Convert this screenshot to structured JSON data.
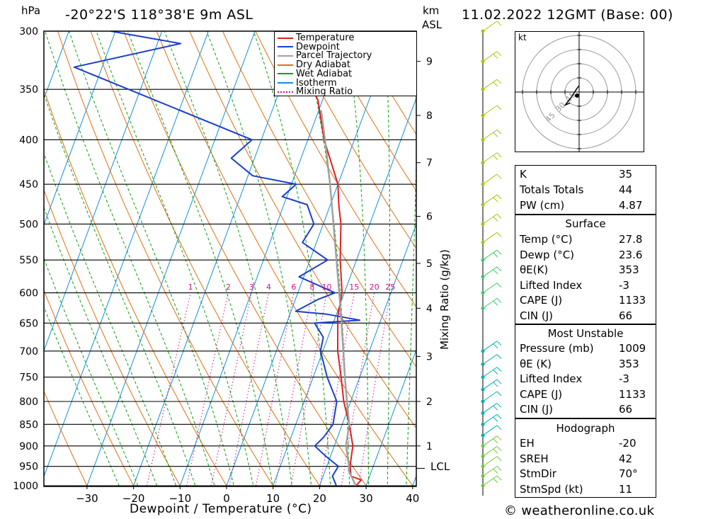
{
  "header": {
    "units_left": "hPa",
    "location": "-20°22'S  118°38'E  9m  ASL",
    "units_km": "km",
    "units_asl": "ASL",
    "datetime": "11.02.2022  12GMT  (Base: 00)"
  },
  "legend": {
    "items": [
      {
        "label": "Temperature",
        "color": "#e02020"
      },
      {
        "label": "Dewpoint",
        "color": "#1a3fd0"
      },
      {
        "label": "Parcel Trajectory",
        "color": "#a0a0a0"
      },
      {
        "label": "Dry Adiabat",
        "color": "#e07010"
      },
      {
        "label": "Wet Adiabat",
        "color": "#10a010"
      },
      {
        "label": "Isotherm",
        "color": "#1090e0"
      },
      {
        "label": "Mixing Ratio",
        "color": "#d0108a"
      }
    ]
  },
  "axes": {
    "pressure_ticks": [
      "300",
      "350",
      "400",
      "450",
      "500",
      "550",
      "600",
      "650",
      "700",
      "750",
      "800",
      "850",
      "900",
      "950",
      "1000"
    ],
    "temp_ticks": [
      "-30",
      "-20",
      "-10",
      "0",
      "10",
      "20",
      "30",
      "40"
    ],
    "km_ticks": [
      "9",
      "8",
      "7",
      "6",
      "5",
      "4",
      "3",
      "2",
      "1"
    ],
    "lcl_label": "LCL",
    "xlabel": "Dewpoint / Temperature (°C)",
    "mixing_axis_label": "Mixing Ratio (g/kg)",
    "mixing_labels": [
      "1",
      "2",
      "3",
      "4",
      "6",
      "8",
      "10",
      "15",
      "20",
      "25"
    ]
  },
  "hodograph": {
    "unit_label": "kt",
    "ring_labels": [
      "15",
      "30",
      "45"
    ]
  },
  "indices": {
    "rows": [
      {
        "label": "K",
        "value": "35"
      },
      {
        "label": "Totals Totals",
        "value": "44"
      },
      {
        "label": "PW (cm)",
        "value": "4.87"
      }
    ]
  },
  "surface": {
    "title": "Surface",
    "rows": [
      {
        "label": "Temp (°C)",
        "value": "27.8"
      },
      {
        "label": "Dewp (°C)",
        "value": "23.6"
      },
      {
        "label": "θE(K)",
        "value": "353"
      },
      {
        "label": "Lifted Index",
        "value": "-3"
      },
      {
        "label": "CAPE (J)",
        "value": "1133"
      },
      {
        "label": "CIN (J)",
        "value": "66"
      }
    ]
  },
  "most_unstable": {
    "title": "Most Unstable",
    "rows": [
      {
        "label": "Pressure (mb)",
        "value": "1009"
      },
      {
        "label": "θE (K)",
        "value": "353"
      },
      {
        "label": "Lifted Index",
        "value": "-3"
      },
      {
        "label": "CAPE (J)",
        "value": "1133"
      },
      {
        "label": "CIN (J)",
        "value": "66"
      }
    ]
  },
  "hodograph_table": {
    "title": "Hodograph",
    "rows": [
      {
        "label": "EH",
        "value": "-20"
      },
      {
        "label": "SREH",
        "value": "42"
      },
      {
        "label": "StmDir",
        "value": "70°"
      },
      {
        "label": "StmSpd (kt)",
        "value": "11"
      }
    ]
  },
  "footer": {
    "credit": "© weatheronline.co.uk"
  },
  "chart_data": {
    "type": "line",
    "title": "-20°22'S 118°38'E 9m ASL",
    "xlabel": "Dewpoint / Temperature (°C)",
    "ylabel": "hPa",
    "xlim": [
      -40,
      40
    ],
    "ylim": [
      1000,
      300
    ],
    "yscale": "log",
    "skew": "skew-T",
    "series": [
      {
        "name": "Temperature",
        "color": "#e02020",
        "points": [
          [
            1000,
            27.8
          ],
          [
            985,
            28.5
          ],
          [
            975,
            26
          ],
          [
            950,
            25
          ],
          [
            925,
            24.5
          ],
          [
            900,
            24
          ],
          [
            850,
            21.5
          ],
          [
            800,
            18.5
          ],
          [
            750,
            16
          ],
          [
            700,
            13.2
          ],
          [
            650,
            11
          ],
          [
            640,
            10.5
          ],
          [
            600,
            9.5
          ],
          [
            550,
            6.5
          ],
          [
            500,
            3.8
          ],
          [
            475,
            1.8
          ],
          [
            450,
            0
          ],
          [
            400,
            -6.5
          ],
          [
            360,
            -11
          ],
          [
            350,
            -13
          ],
          [
            310,
            -20
          ],
          [
            300,
            -22
          ]
        ]
      },
      {
        "name": "Dewpoint",
        "color": "#1a3fd0",
        "points": [
          [
            1000,
            23.6
          ],
          [
            975,
            22
          ],
          [
            950,
            22.5
          ],
          [
            925,
            19
          ],
          [
            900,
            15.8
          ],
          [
            880,
            17
          ],
          [
            850,
            18
          ],
          [
            800,
            17
          ],
          [
            750,
            13
          ],
          [
            700,
            9.5
          ],
          [
            675,
            9
          ],
          [
            650,
            6
          ],
          [
            645,
            15.5
          ],
          [
            635,
            8
          ],
          [
            630,
            1
          ],
          [
            610,
            5
          ],
          [
            600,
            8
          ],
          [
            575,
            -1
          ],
          [
            550,
            3.8
          ],
          [
            525,
            -3
          ],
          [
            500,
            -2
          ],
          [
            475,
            -5
          ],
          [
            465,
            -11
          ],
          [
            450,
            -9
          ],
          [
            440,
            -19
          ],
          [
            420,
            -25
          ],
          [
            400,
            -22
          ],
          [
            330,
            -66
          ],
          [
            310,
            -45
          ],
          [
            300,
            -61
          ]
        ]
      },
      {
        "name": "Parcel Trajectory",
        "color": "#a0a0a0",
        "points": [
          [
            1000,
            27.8
          ],
          [
            960,
            25
          ],
          [
            950,
            24.8
          ],
          [
            900,
            22.5
          ],
          [
            850,
            21.5
          ],
          [
            800,
            19.2
          ],
          [
            750,
            16.8
          ],
          [
            700,
            14.4
          ],
          [
            650,
            11.8
          ],
          [
            600,
            8.9
          ],
          [
            550,
            5.7
          ],
          [
            500,
            2.2
          ],
          [
            450,
            -1.7
          ],
          [
            400,
            -6.3
          ],
          [
            370,
            -9.5
          ]
        ]
      }
    ],
    "lcl_pressure": 955,
    "km_levels": [
      {
        "km": 1,
        "p": 900
      },
      {
        "km": 2,
        "p": 800
      },
      {
        "km": 3,
        "p": 710
      },
      {
        "km": 4,
        "p": 625
      },
      {
        "km": 5,
        "p": 555
      },
      {
        "km": 6,
        "p": 490
      },
      {
        "km": 7,
        "p": 425
      },
      {
        "km": 8,
        "p": 375
      },
      {
        "km": 9,
        "p": 325
      }
    ],
    "mixing_ratios": [
      1,
      2,
      3,
      4,
      6,
      8,
      10,
      15,
      20,
      25
    ],
    "hodograph_points": [
      [
        0,
        7
      ],
      [
        -3,
        3
      ],
      [
        -8,
        -5
      ],
      [
        -12,
        -10
      ],
      [
        -15,
        -14
      ],
      [
        -10,
        -12
      ]
    ]
  }
}
